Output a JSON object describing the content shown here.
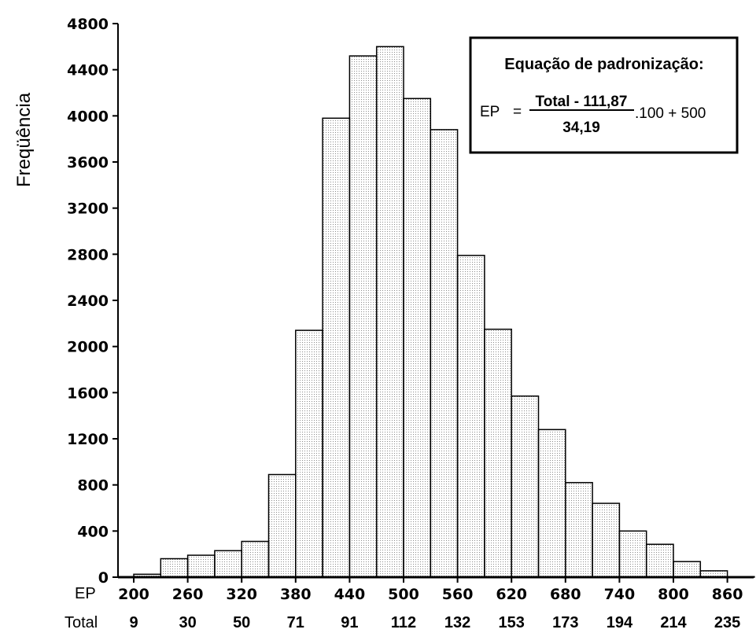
{
  "chart_data": {
    "type": "bar",
    "ylabel": "Freqüência",
    "x_row_labels": [
      "EP",
      "Total"
    ],
    "ep_ticks": [
      "200",
      "260",
      "320",
      "380",
      "440",
      "500",
      "560",
      "620",
      "680",
      "740",
      "800",
      "860"
    ],
    "total_ticks": [
      "9",
      "30",
      "50",
      "71",
      "91",
      "112",
      "132",
      "153",
      "173",
      "194",
      "214",
      "235"
    ],
    "y_ticks": [
      "0",
      "400",
      "800",
      "1200",
      "1600",
      "2000",
      "2400",
      "2800",
      "3200",
      "3600",
      "4000",
      "4400",
      "4800"
    ],
    "ylim": [
      0,
      4800
    ],
    "bin_start": 200,
    "bin_width": 30,
    "values": [
      25,
      160,
      190,
      230,
      310,
      890,
      2140,
      3980,
      4520,
      4600,
      4150,
      3880,
      2790,
      2150,
      1570,
      1280,
      820,
      640,
      400,
      285,
      135,
      55,
      5
    ],
    "fill_pattern": "dotted"
  },
  "equation_box": {
    "title": "Equação de padronização:",
    "lhs": "EP",
    "equals": "=",
    "numerator": "Total - 111,87",
    "denominator": "34,19",
    "tail": ".100 + 500"
  }
}
